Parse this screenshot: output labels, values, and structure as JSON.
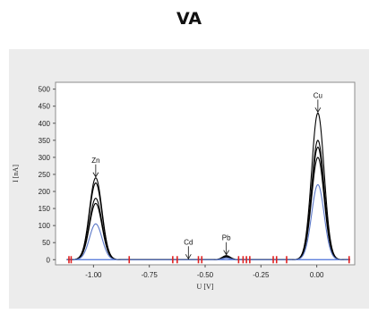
{
  "page": {
    "heading": "VA"
  },
  "colors": {
    "panel_bg": "#ececec",
    "plot_bg": "#ffffff",
    "black_curves": "#000000",
    "blue_curve": "#5b78c8",
    "baseline": "#4a6fd8",
    "markers": "#e02020"
  },
  "chart_data": {
    "type": "line",
    "title": "",
    "xlabel": "U [V]",
    "ylabel": "I [nA]",
    "xlim": [
      -1.17,
      0.17
    ],
    "ylim": [
      -15,
      520
    ],
    "x_ticks": [
      -1.0,
      -0.75,
      -0.5,
      -0.25,
      0.0
    ],
    "x_tick_labels": [
      "-1.00",
      "-0.75",
      "-0.50",
      "-0.25",
      "0.00"
    ],
    "y_ticks": [
      0,
      50,
      100,
      150,
      200,
      250,
      300,
      350,
      400,
      450,
      500
    ],
    "y_tick_labels": [
      "0",
      "50",
      "100",
      "150",
      "200",
      "250",
      "300",
      "350",
      "400",
      "450",
      "500"
    ],
    "grid": false,
    "peaks": [
      {
        "label": "Zn",
        "x": -0.99
      },
      {
        "label": "Cd",
        "x": -0.575
      },
      {
        "label": "Pb",
        "x": -0.405
      },
      {
        "label": "Cu",
        "x": 0.005
      }
    ],
    "series": [
      {
        "color": "black",
        "peak_values": [
          240,
          0,
          12,
          430
        ]
      },
      {
        "color": "black",
        "peak_values": [
          225,
          0,
          10,
          350
        ]
      },
      {
        "color": "black",
        "peak_values": [
          180,
          0,
          9,
          330
        ]
      },
      {
        "color": "black",
        "peak_values": [
          165,
          0,
          8,
          300
        ]
      },
      {
        "color": "blue",
        "peak_values": [
          105,
          0,
          5,
          220
        ]
      }
    ],
    "marker_x": [
      -1.11,
      -1.1,
      -0.84,
      -0.645,
      -0.625,
      -0.53,
      -0.515,
      -0.35,
      -0.33,
      -0.315,
      -0.3,
      -0.195,
      -0.18,
      -0.135,
      0.145
    ]
  }
}
